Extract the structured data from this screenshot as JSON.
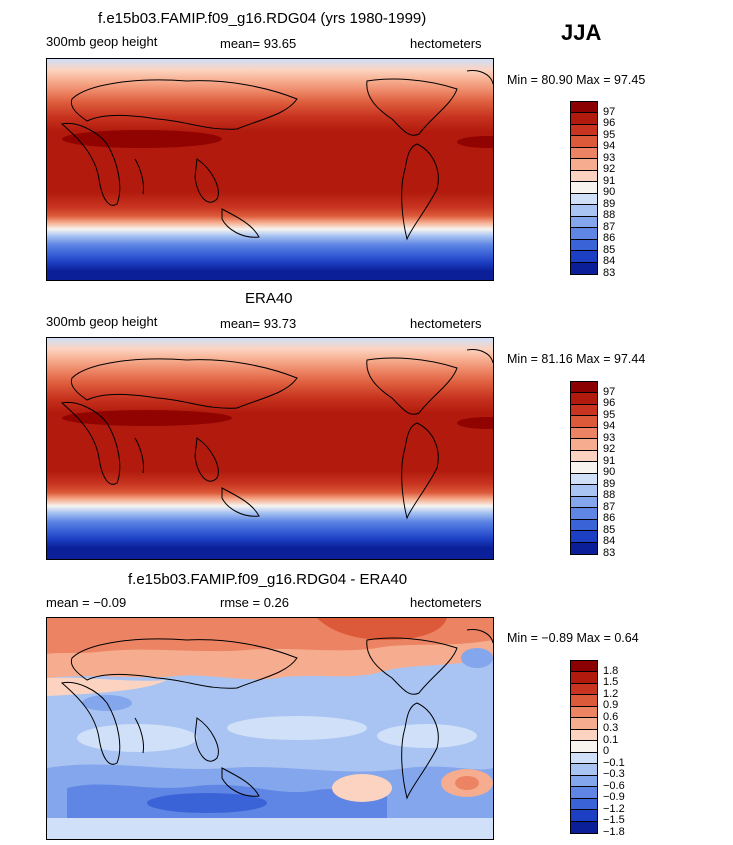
{
  "season": "JJA",
  "panels": [
    {
      "title": "f.e15b03.FAMIP.f09_g16.RDG04 (yrs 1980-1999)",
      "left_text": "300mb geop height",
      "mid_text": "mean=  93.65",
      "right_text": "hectometers",
      "min_max": "Min =  80.90 Max =  97.45",
      "colorbar_labels": [
        "97",
        "96",
        "95",
        "94",
        "93",
        "92",
        "91",
        "90",
        "89",
        "88",
        "87",
        "86",
        "85",
        "84",
        "83"
      ]
    },
    {
      "title": "ERA40",
      "left_text": "300mb geop height",
      "mid_text": "mean=  93.73",
      "right_text": "hectometers",
      "min_max": "Min =  81.16 Max =  97.44",
      "colorbar_labels": [
        "97",
        "96",
        "95",
        "94",
        "93",
        "92",
        "91",
        "90",
        "89",
        "88",
        "87",
        "86",
        "85",
        "84",
        "83"
      ]
    },
    {
      "title": "f.e15b03.FAMIP.f09_g16.RDG04 - ERA40",
      "left_text": "mean =  −0.09",
      "mid_text": "rmse =   0.26",
      "right_text": "hectometers",
      "min_max": "Min =  −0.89 Max =   0.64",
      "colorbar_labels": [
        "1.8",
        "1.5",
        "1.2",
        "0.9",
        "0.6",
        "0.3",
        "0.1",
        "0",
        "−0.1",
        "−0.3",
        "−0.6",
        "−0.9",
        "−1.2",
        "−1.5",
        "−1.8"
      ]
    }
  ],
  "palette": [
    "#8b0000",
    "#b11a0c",
    "#c83420",
    "#dc5a3a",
    "#ec8464",
    "#f6ac8e",
    "#fcd3c0",
    "#f7f4f0",
    "#cfe0f8",
    "#a9c4f2",
    "#84a6ec",
    "#5f86e4",
    "#3b63d8",
    "#1d3fc4",
    "#0a1f98"
  ]
}
